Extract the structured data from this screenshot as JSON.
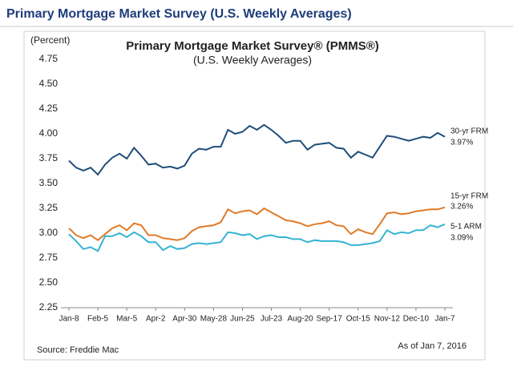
{
  "header": {
    "title": "Primary Mortgage Market Survey (U.S. Weekly Averages)"
  },
  "chart_data": {
    "type": "line",
    "title": "Primary Mortgage Market Survey® (PMMS®)",
    "subtitle": "(U.S. Weekly Averages)",
    "y_label": "(Percent)",
    "source": "Source: Freddie Mac",
    "note": "As of Jan 7, 2016",
    "categories": [
      "Jan-8",
      null,
      null,
      null,
      "Feb-5",
      null,
      null,
      null,
      "Mar-5",
      null,
      null,
      null,
      "Apr-2",
      null,
      null,
      null,
      "Apr-30",
      null,
      null,
      null,
      "May-28",
      null,
      null,
      null,
      "Jun-25",
      null,
      null,
      null,
      "Jul-23",
      null,
      null,
      null,
      "Aug-20",
      null,
      null,
      null,
      "Sep-17",
      null,
      null,
      null,
      "Oct-15",
      null,
      null,
      null,
      "Nov-12",
      null,
      null,
      null,
      "Dec-10",
      null,
      null,
      null,
      "Jan-7"
    ],
    "series": [
      {
        "name": "30-yr FRM",
        "color": "#1f4e79",
        "values": [
          3.73,
          3.66,
          3.63,
          3.66,
          3.59,
          3.69,
          3.76,
          3.8,
          3.75,
          3.86,
          3.78,
          3.69,
          3.7,
          3.66,
          3.67,
          3.65,
          3.68,
          3.8,
          3.85,
          3.84,
          3.87,
          3.87,
          4.04,
          4.0,
          4.02,
          4.08,
          4.04,
          4.09,
          4.04,
          3.98,
          3.91,
          3.93,
          3.93,
          3.84,
          3.89,
          3.9,
          3.91,
          3.86,
          3.85,
          3.76,
          3.82,
          3.79,
          3.76,
          3.87,
          3.98,
          3.97,
          3.95,
          3.93,
          3.95,
          3.97,
          3.96,
          4.01,
          3.97
        ],
        "value_labels": [
          null,
          null,
          null,
          null,
          null,
          null,
          null,
          null,
          null,
          null,
          null,
          null,
          null,
          null,
          null,
          null,
          null,
          null,
          null,
          null,
          null,
          null,
          null,
          null,
          null,
          null,
          null,
          null,
          null,
          null,
          null,
          null,
          null,
          null,
          null,
          null,
          null,
          null,
          null,
          null,
          null,
          null,
          null,
          null,
          null,
          null,
          null,
          null,
          null,
          null,
          null,
          null,
          "3.97%"
        ]
      },
      {
        "name": "15-yr FRM",
        "color": "#e07b29",
        "values": [
          3.05,
          2.98,
          2.95,
          2.98,
          2.93,
          2.99,
          3.05,
          3.08,
          3.03,
          3.1,
          3.08,
          2.98,
          2.98,
          2.95,
          2.94,
          2.93,
          2.95,
          3.02,
          3.06,
          3.07,
          3.08,
          3.11,
          3.24,
          3.2,
          3.22,
          3.23,
          3.19,
          3.25,
          3.21,
          3.17,
          3.13,
          3.12,
          3.1,
          3.07,
          3.09,
          3.1,
          3.12,
          3.08,
          3.07,
          2.99,
          3.04,
          3.01,
          2.99,
          3.09,
          3.2,
          3.21,
          3.19,
          3.2,
          3.22,
          3.23,
          3.24,
          3.24,
          3.26
        ],
        "value_labels": [
          null,
          null,
          null,
          null,
          null,
          null,
          null,
          null,
          null,
          null,
          null,
          null,
          null,
          null,
          null,
          null,
          null,
          null,
          null,
          null,
          null,
          null,
          null,
          null,
          null,
          null,
          null,
          null,
          null,
          null,
          null,
          null,
          null,
          null,
          null,
          null,
          null,
          null,
          null,
          null,
          null,
          null,
          null,
          null,
          null,
          null,
          null,
          null,
          null,
          null,
          null,
          null,
          "3.26%"
        ]
      },
      {
        "name": "5-1 ARM",
        "color": "#35b4d4",
        "values": [
          2.99,
          2.92,
          2.84,
          2.86,
          2.82,
          2.97,
          2.97,
          3.0,
          2.96,
          3.01,
          2.97,
          2.91,
          2.91,
          2.83,
          2.87,
          2.84,
          2.85,
          2.89,
          2.9,
          2.89,
          2.9,
          2.91,
          3.01,
          3.0,
          2.98,
          2.99,
          2.94,
          2.97,
          2.98,
          2.96,
          2.96,
          2.94,
          2.94,
          2.91,
          2.93,
          2.92,
          2.92,
          2.92,
          2.91,
          2.88,
          2.88,
          2.89,
          2.9,
          2.92,
          3.03,
          2.99,
          3.01,
          3.0,
          3.03,
          3.03,
          3.08,
          3.06,
          3.09
        ],
        "value_labels": [
          null,
          null,
          null,
          null,
          null,
          null,
          null,
          null,
          null,
          null,
          null,
          null,
          null,
          null,
          null,
          null,
          null,
          null,
          null,
          null,
          null,
          null,
          null,
          null,
          null,
          null,
          null,
          null,
          null,
          null,
          null,
          null,
          null,
          null,
          null,
          null,
          null,
          null,
          null,
          null,
          null,
          null,
          null,
          null,
          null,
          null,
          null,
          null,
          null,
          null,
          null,
          null,
          "3.09%"
        ]
      }
    ],
    "ylim": [
      2.25,
      4.75
    ],
    "yticks": [
      2.25,
      {
        "value": 2.5,
        "label": "2.50"
      },
      2.75,
      {
        "value": 3,
        "label": "3.00"
      },
      3.25,
      {
        "value": 3.5,
        "label": "3.50"
      },
      3.75,
      {
        "value": 4,
        "label": "4.00"
      },
      4.25,
      {
        "value": 4.5,
        "label": "4.50"
      },
      4.75
    ]
  }
}
